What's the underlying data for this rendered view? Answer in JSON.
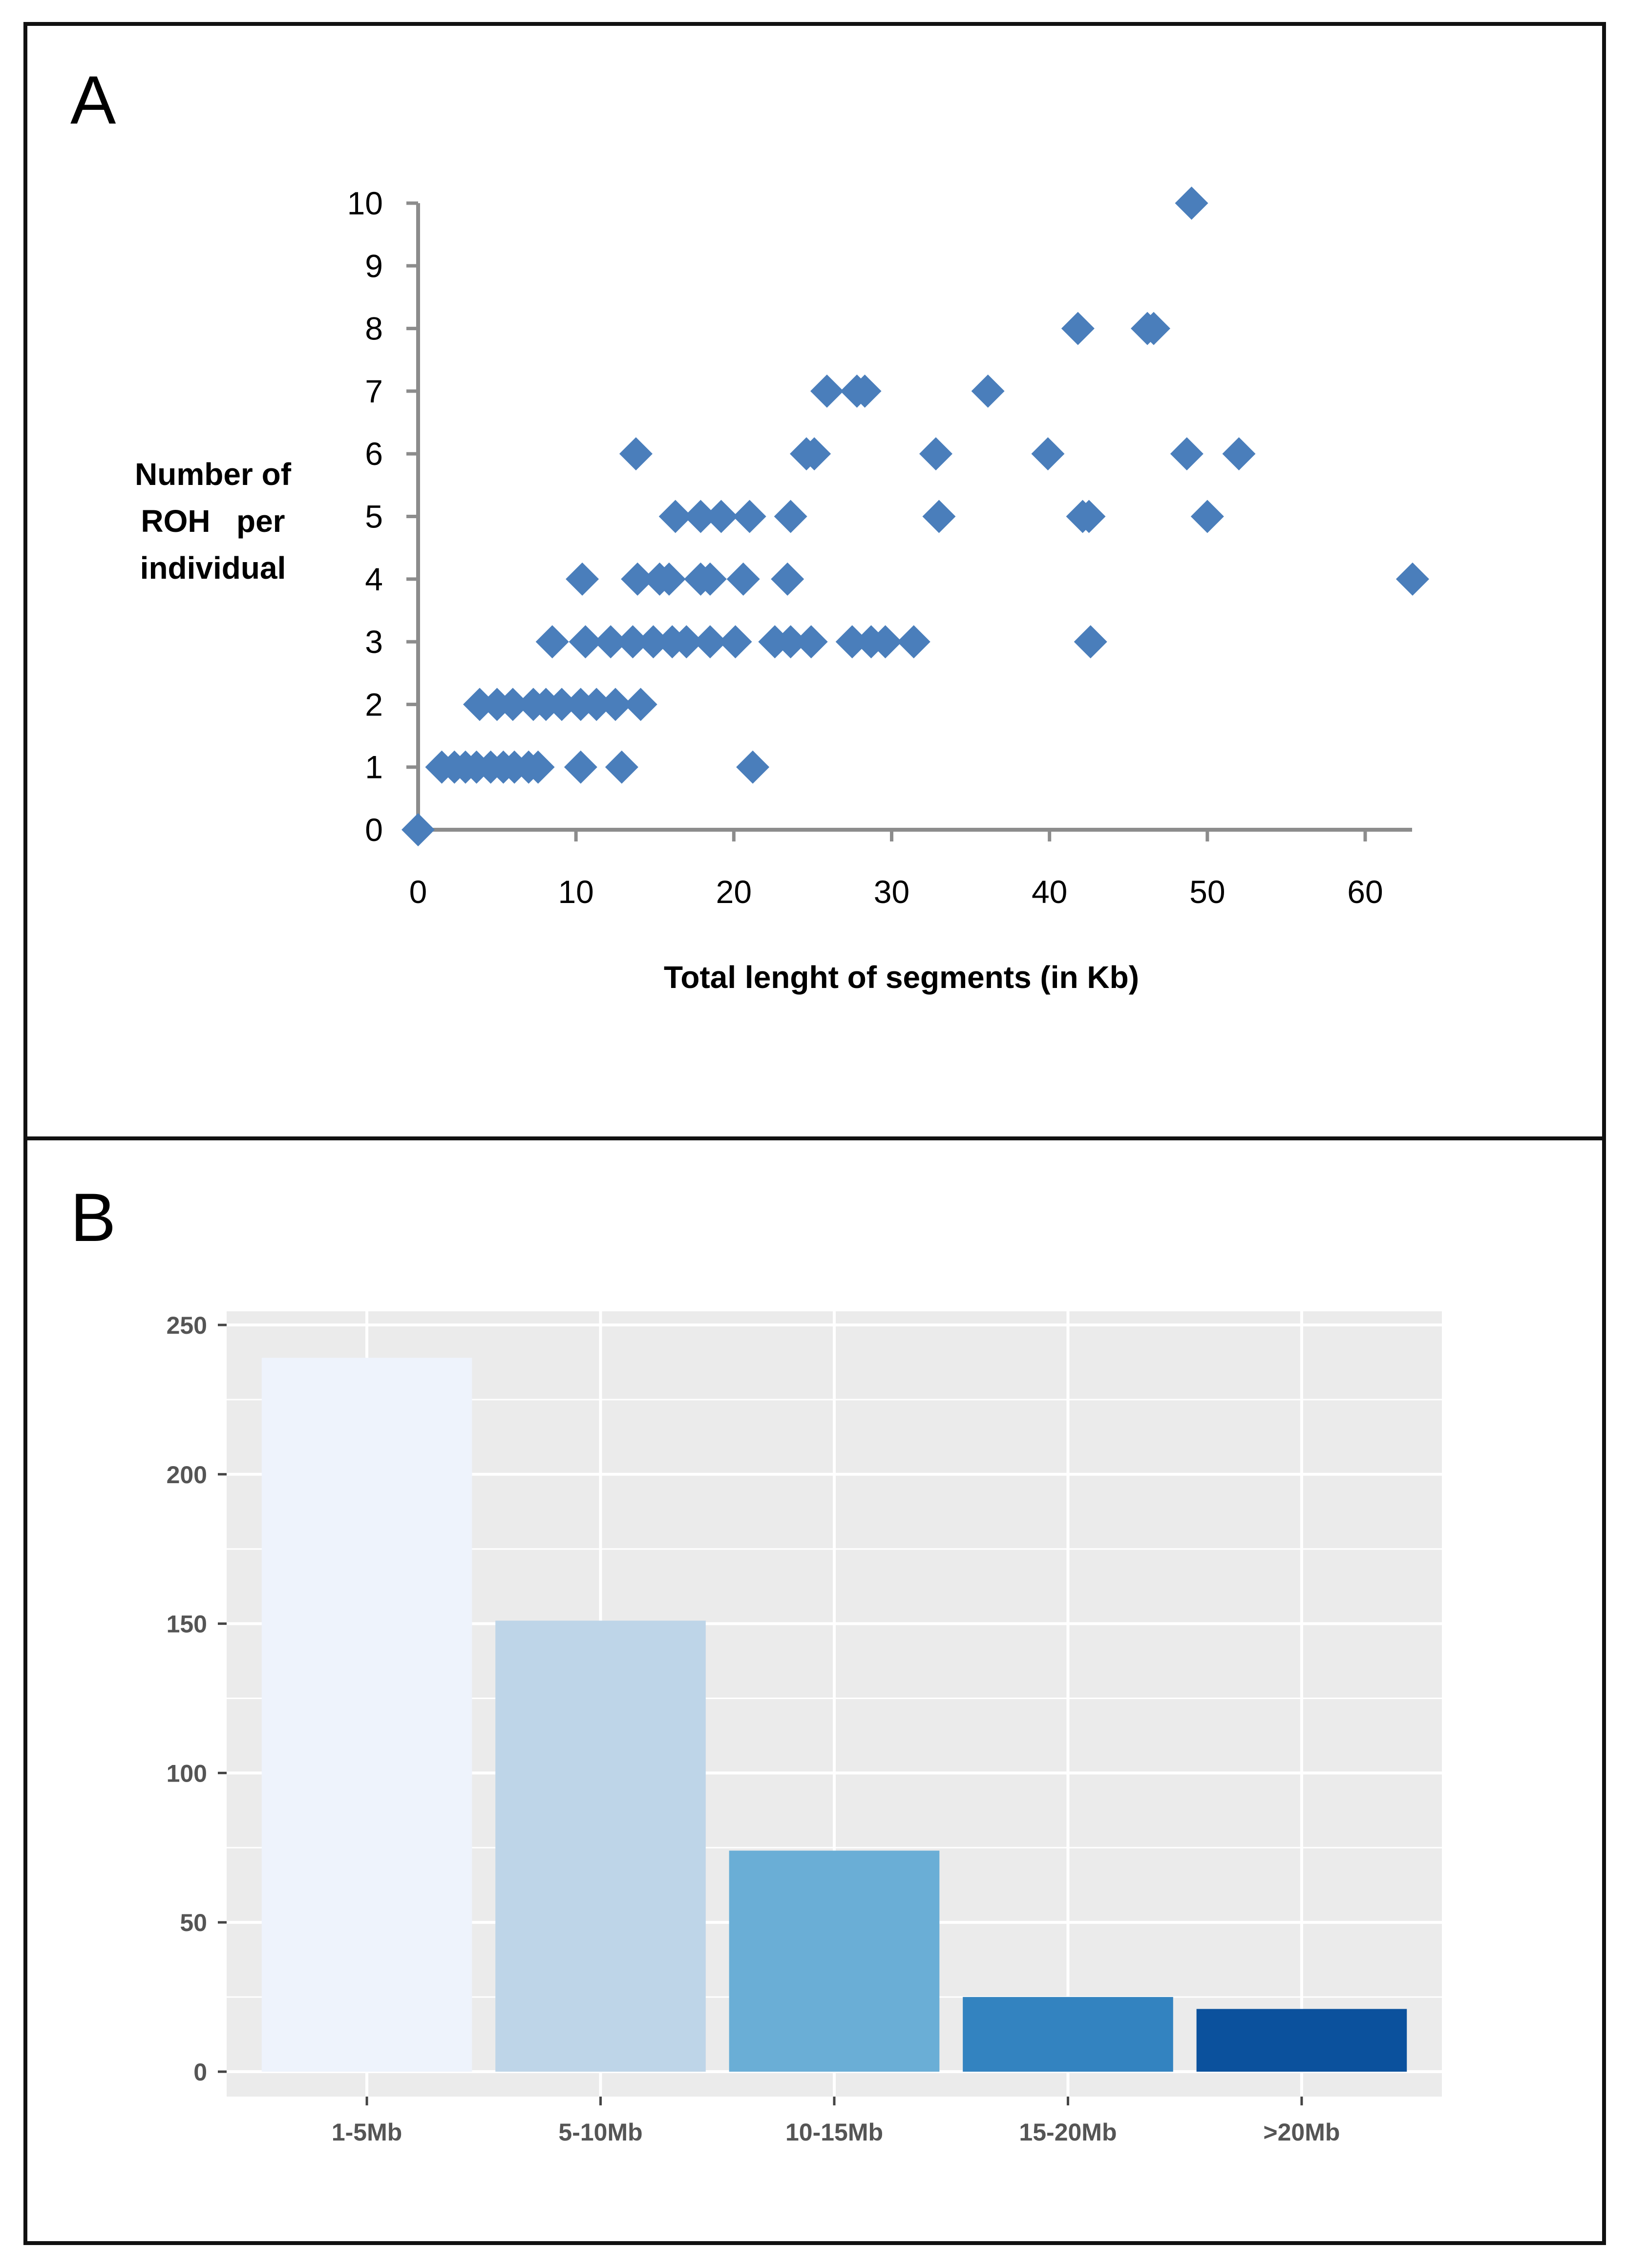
{
  "panel_a": {
    "letter": "A"
  },
  "panel_b": {
    "letter": "B"
  },
  "colors": {
    "marker": "#4a7ebb",
    "bar_fills": [
      "#eef3fc",
      "#bed5e8",
      "#6aaed6",
      "#3383c0",
      "#0b519d"
    ],
    "plot_bg": "#ebebeb"
  },
  "chart_data": [
    {
      "type": "scatter",
      "title": "",
      "xlabel": "Total lenght of segments (in Kb)",
      "ylabel_lines": [
        "Number of",
        "ROH   per",
        "individual"
      ],
      "xlim": [
        0,
        63.5
      ],
      "ylim": [
        0,
        10
      ],
      "x_ticks": [
        "0",
        "10",
        "20",
        "30",
        "40",
        "50",
        "60"
      ],
      "y_ticks": [
        "0",
        "1",
        "2",
        "3",
        "4",
        "5",
        "6",
        "7",
        "8",
        "9",
        "10"
      ],
      "points": [
        {
          "x": 0,
          "y": 0
        },
        {
          "x": 1.5,
          "y": 1
        },
        {
          "x": 2.3,
          "y": 1
        },
        {
          "x": 3.0,
          "y": 1
        },
        {
          "x": 3.7,
          "y": 1
        },
        {
          "x": 4.6,
          "y": 1
        },
        {
          "x": 5.4,
          "y": 1
        },
        {
          "x": 6.1,
          "y": 1
        },
        {
          "x": 7.0,
          "y": 1
        },
        {
          "x": 7.6,
          "y": 1
        },
        {
          "x": 10.3,
          "y": 1
        },
        {
          "x": 12.9,
          "y": 1
        },
        {
          "x": 21.2,
          "y": 1
        },
        {
          "x": 3.9,
          "y": 2
        },
        {
          "x": 5.0,
          "y": 2
        },
        {
          "x": 6.0,
          "y": 2
        },
        {
          "x": 7.3,
          "y": 2
        },
        {
          "x": 8.1,
          "y": 2
        },
        {
          "x": 9.1,
          "y": 2
        },
        {
          "x": 10.3,
          "y": 2
        },
        {
          "x": 11.3,
          "y": 2
        },
        {
          "x": 12.5,
          "y": 2
        },
        {
          "x": 14.1,
          "y": 2
        },
        {
          "x": 8.5,
          "y": 3
        },
        {
          "x": 10.6,
          "y": 3
        },
        {
          "x": 12.2,
          "y": 3
        },
        {
          "x": 13.6,
          "y": 3
        },
        {
          "x": 14.9,
          "y": 3
        },
        {
          "x": 16.1,
          "y": 3
        },
        {
          "x": 17.0,
          "y": 3
        },
        {
          "x": 18.5,
          "y": 3
        },
        {
          "x": 20.1,
          "y": 3
        },
        {
          "x": 22.6,
          "y": 3
        },
        {
          "x": 23.6,
          "y": 3
        },
        {
          "x": 24.9,
          "y": 3
        },
        {
          "x": 27.5,
          "y": 3
        },
        {
          "x": 28.7,
          "y": 3
        },
        {
          "x": 29.6,
          "y": 3
        },
        {
          "x": 31.4,
          "y": 3
        },
        {
          "x": 42.6,
          "y": 3
        },
        {
          "x": 10.4,
          "y": 4
        },
        {
          "x": 13.9,
          "y": 4
        },
        {
          "x": 15.3,
          "y": 4
        },
        {
          "x": 15.9,
          "y": 4
        },
        {
          "x": 17.9,
          "y": 4
        },
        {
          "x": 18.5,
          "y": 4
        },
        {
          "x": 20.6,
          "y": 4
        },
        {
          "x": 23.4,
          "y": 4
        },
        {
          "x": 63.0,
          "y": 4
        },
        {
          "x": 16.3,
          "y": 5
        },
        {
          "x": 17.9,
          "y": 5
        },
        {
          "x": 19.2,
          "y": 5
        },
        {
          "x": 21.0,
          "y": 5
        },
        {
          "x": 23.6,
          "y": 5
        },
        {
          "x": 33.0,
          "y": 5
        },
        {
          "x": 42.1,
          "y": 5
        },
        {
          "x": 42.5,
          "y": 5
        },
        {
          "x": 50.0,
          "y": 5
        },
        {
          "x": 13.8,
          "y": 6
        },
        {
          "x": 24.6,
          "y": 6
        },
        {
          "x": 25.1,
          "y": 6
        },
        {
          "x": 32.8,
          "y": 6
        },
        {
          "x": 39.9,
          "y": 6
        },
        {
          "x": 48.7,
          "y": 6
        },
        {
          "x": 52.0,
          "y": 6
        },
        {
          "x": 25.9,
          "y": 7
        },
        {
          "x": 27.8,
          "y": 7
        },
        {
          "x": 28.3,
          "y": 7
        },
        {
          "x": 36.1,
          "y": 7
        },
        {
          "x": 41.8,
          "y": 8
        },
        {
          "x": 46.2,
          "y": 8
        },
        {
          "x": 46.6,
          "y": 8
        },
        {
          "x": 49.0,
          "y": 10
        }
      ]
    },
    {
      "type": "bar",
      "title": "",
      "xlabel": "",
      "ylabel": "",
      "categories": [
        "1-5Mb",
        "5-10Mb",
        "10-15Mb",
        "15-20Mb",
        ">20Mb"
      ],
      "values": [
        239,
        151,
        74,
        25,
        21
      ],
      "ylim": [
        0,
        250
      ],
      "y_ticks": [
        "0",
        "50",
        "100",
        "150",
        "200",
        "250"
      ],
      "grid": true
    }
  ]
}
